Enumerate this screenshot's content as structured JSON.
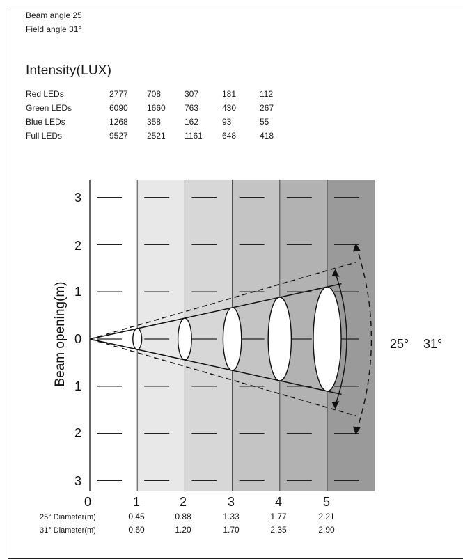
{
  "header": {
    "beam_angle": "Beam angle 25",
    "field_angle": "Field angle  31°"
  },
  "intensity": {
    "title": "Intensity(LUX)",
    "rows": [
      {
        "label": "Red LEDs",
        "values": [
          "2777",
          "708",
          "307",
          "181",
          "112"
        ]
      },
      {
        "label": "Green LEDs",
        "values": [
          "6090",
          "1660",
          "763",
          "430",
          "267"
        ]
      },
      {
        "label": "Blue LEDs",
        "values": [
          "1268",
          "358",
          "162",
          "93",
          "55"
        ]
      },
      {
        "label": "Full LEDs",
        "values": [
          "9527",
          "2521",
          "1161",
          "648",
          "418"
        ]
      }
    ]
  },
  "diagram": {
    "y_axis_label": "Beam opening(m)",
    "y_ticks": [
      "3",
      "2",
      "1",
      "0",
      "1",
      "2",
      "3"
    ],
    "x_ticks": [
      "0",
      "1",
      "2",
      "3",
      "4",
      "5"
    ],
    "beam_angle_label": "25°",
    "field_angle_label": "31°",
    "distance_shades": [
      "#e8e8e8",
      "#d7d7d7",
      "#c4c4c4",
      "#b2b2b2",
      "#9a9a9a"
    ]
  },
  "diameters": [
    {
      "label": "25° Diameter(m)",
      "values": [
        "0.45",
        "0.88",
        "1.33",
        "1.77",
        "2.21"
      ]
    },
    {
      "label": "31° Diameter(m)",
      "values": [
        "0.60",
        "1.20",
        "1.70",
        "2.35",
        "2.90"
      ]
    }
  ]
}
